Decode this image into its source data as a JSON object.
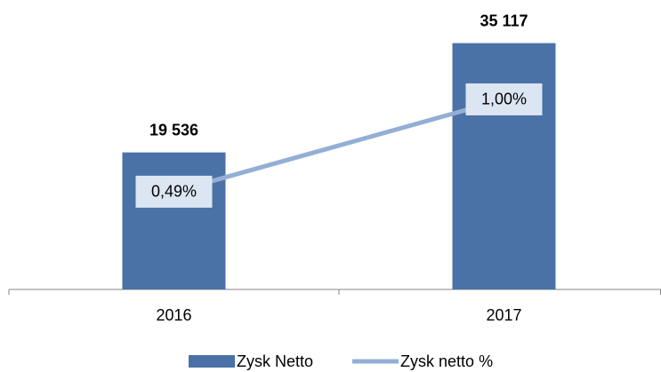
{
  "chart_data": {
    "type": "combo",
    "categories": [
      "2016",
      "2017"
    ],
    "series": [
      {
        "name": "Zysk Netto",
        "type": "bar",
        "color": "#4a72a6",
        "values": [
          19536,
          35117
        ],
        "value_labels": [
          "19 536",
          "35 117"
        ]
      },
      {
        "name": "Zysk netto %",
        "type": "line",
        "axis": "y2",
        "color": "#93afd4",
        "values": [
          0.49,
          1.0
        ],
        "value_labels": [
          "0,49%",
          "1,00%"
        ]
      }
    ],
    "ylim": [
      0,
      40000
    ],
    "y2lim": [
      -0.05,
      1.5
    ],
    "legend": "bottom"
  }
}
